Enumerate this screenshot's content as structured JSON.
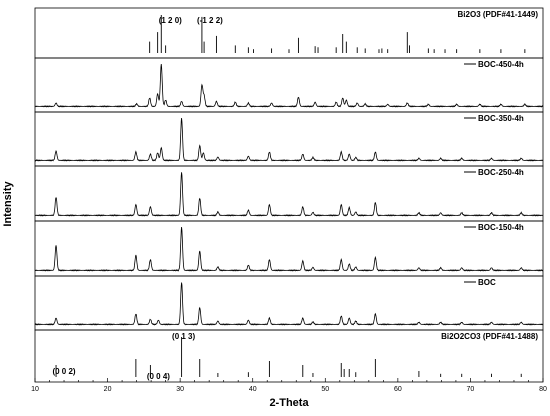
{
  "chart_data": {
    "type": "line",
    "xlabel": "2-Theta",
    "ylabel": "Intensity",
    "xlim": [
      10,
      80
    ],
    "x_ticks": [
      10,
      20,
      30,
      40,
      50,
      60,
      70,
      80
    ],
    "panel_order_top_to_bottom": [
      "Bi2O3 (PDF#41-1449)",
      "BOC-450-4h",
      "BOC-350-4h",
      "BOC-250-4h",
      "BOC-150-4h",
      "BOC",
      "Bi2O2CO3 (PDF#41-1488)"
    ],
    "series": [
      {
        "name": "Bi2O3 (PDF#41-1449)",
        "label_text": "Bi2O3 (PDF#41-1449)",
        "kind": "reference_sticks",
        "peaks": [
          [
            25.8,
            0.3
          ],
          [
            26.9,
            0.55
          ],
          [
            27.4,
            1.0
          ],
          [
            28.0,
            0.2
          ],
          [
            33.0,
            0.95
          ],
          [
            33.3,
            0.3
          ],
          [
            35.0,
            0.45
          ],
          [
            37.6,
            0.2
          ],
          [
            39.4,
            0.15
          ],
          [
            40.1,
            0.1
          ],
          [
            42.6,
            0.12
          ],
          [
            45.0,
            0.1
          ],
          [
            46.3,
            0.4
          ],
          [
            48.6,
            0.18
          ],
          [
            49.0,
            0.15
          ],
          [
            51.5,
            0.15
          ],
          [
            52.4,
            0.5
          ],
          [
            52.9,
            0.3
          ],
          [
            54.4,
            0.15
          ],
          [
            55.5,
            0.12
          ],
          [
            57.4,
            0.1
          ],
          [
            57.8,
            0.12
          ],
          [
            58.6,
            0.1
          ],
          [
            61.3,
            0.55
          ],
          [
            61.6,
            0.2
          ],
          [
            64.2,
            0.12
          ],
          [
            65.0,
            0.1
          ],
          [
            66.5,
            0.1
          ],
          [
            68.1,
            0.1
          ],
          [
            71.3,
            0.1
          ],
          [
            74.2,
            0.1
          ],
          [
            77.5,
            0.1
          ]
        ]
      },
      {
        "name": "BOC-450-4h",
        "label_text": "BOC-450-4h",
        "kind": "pattern",
        "peaks": [
          [
            12.9,
            0.08
          ],
          [
            24.0,
            0.06
          ],
          [
            25.8,
            0.2
          ],
          [
            26.9,
            0.3
          ],
          [
            27.4,
            1.0
          ],
          [
            28.0,
            0.15
          ],
          [
            30.2,
            0.12
          ],
          [
            33.0,
            0.5
          ],
          [
            33.3,
            0.25
          ],
          [
            35.0,
            0.12
          ],
          [
            37.6,
            0.1
          ],
          [
            39.4,
            0.08
          ],
          [
            42.6,
            0.08
          ],
          [
            46.3,
            0.22
          ],
          [
            48.6,
            0.1
          ],
          [
            51.5,
            0.1
          ],
          [
            52.4,
            0.2
          ],
          [
            52.9,
            0.15
          ],
          [
            54.4,
            0.08
          ],
          [
            55.5,
            0.06
          ],
          [
            58.6,
            0.05
          ],
          [
            61.3,
            0.08
          ],
          [
            64.2,
            0.05
          ],
          [
            68.1,
            0.05
          ],
          [
            71.3,
            0.05
          ],
          [
            74.2,
            0.05
          ],
          [
            77.5,
            0.05
          ]
        ]
      },
      {
        "name": "BOC-350-4h",
        "label_text": "BOC-350-4h",
        "kind": "pattern",
        "peaks": [
          [
            12.9,
            0.22
          ],
          [
            23.9,
            0.2
          ],
          [
            25.9,
            0.15
          ],
          [
            26.9,
            0.18
          ],
          [
            27.4,
            0.3
          ],
          [
            30.2,
            1.0
          ],
          [
            32.7,
            0.35
          ],
          [
            33.2,
            0.18
          ],
          [
            35.2,
            0.08
          ],
          [
            39.4,
            0.1
          ],
          [
            42.3,
            0.2
          ],
          [
            46.9,
            0.15
          ],
          [
            48.3,
            0.07
          ],
          [
            52.2,
            0.2
          ],
          [
            53.3,
            0.15
          ],
          [
            54.2,
            0.07
          ],
          [
            56.9,
            0.2
          ],
          [
            62.9,
            0.05
          ],
          [
            65.9,
            0.05
          ],
          [
            68.8,
            0.05
          ],
          [
            72.9,
            0.05
          ],
          [
            77.0,
            0.05
          ]
        ]
      },
      {
        "name": "BOC-250-4h",
        "label_text": "BOC-250-4h",
        "kind": "pattern",
        "peaks": [
          [
            12.9,
            0.42
          ],
          [
            23.9,
            0.25
          ],
          [
            25.9,
            0.2
          ],
          [
            30.2,
            1.0
          ],
          [
            32.7,
            0.4
          ],
          [
            35.2,
            0.08
          ],
          [
            39.4,
            0.12
          ],
          [
            42.3,
            0.25
          ],
          [
            46.9,
            0.2
          ],
          [
            48.3,
            0.07
          ],
          [
            52.2,
            0.25
          ],
          [
            53.3,
            0.18
          ],
          [
            54.2,
            0.08
          ],
          [
            56.9,
            0.3
          ],
          [
            62.9,
            0.06
          ],
          [
            65.9,
            0.06
          ],
          [
            68.8,
            0.06
          ],
          [
            72.9,
            0.06
          ],
          [
            77.0,
            0.06
          ]
        ]
      },
      {
        "name": "BOC-150-4h",
        "label_text": "BOC-150-4h",
        "kind": "pattern",
        "peaks": [
          [
            12.9,
            0.58
          ],
          [
            23.9,
            0.35
          ],
          [
            25.9,
            0.25
          ],
          [
            30.2,
            1.0
          ],
          [
            32.7,
            0.45
          ],
          [
            35.2,
            0.08
          ],
          [
            39.4,
            0.12
          ],
          [
            42.3,
            0.25
          ],
          [
            46.9,
            0.22
          ],
          [
            48.3,
            0.07
          ],
          [
            52.2,
            0.25
          ],
          [
            53.3,
            0.15
          ],
          [
            54.2,
            0.08
          ],
          [
            56.9,
            0.3
          ],
          [
            62.9,
            0.06
          ],
          [
            65.9,
            0.06
          ],
          [
            68.8,
            0.06
          ],
          [
            72.9,
            0.06
          ],
          [
            77.0,
            0.06
          ]
        ]
      },
      {
        "name": "BOC",
        "label_text": "BOC",
        "kind": "pattern",
        "peaks": [
          [
            12.9,
            0.15
          ],
          [
            23.9,
            0.25
          ],
          [
            25.9,
            0.12
          ],
          [
            27.0,
            0.1
          ],
          [
            30.2,
            1.0
          ],
          [
            32.7,
            0.4
          ],
          [
            35.2,
            0.08
          ],
          [
            39.4,
            0.1
          ],
          [
            42.3,
            0.15
          ],
          [
            46.9,
            0.15
          ],
          [
            48.3,
            0.06
          ],
          [
            52.2,
            0.2
          ],
          [
            53.3,
            0.15
          ],
          [
            54.2,
            0.08
          ],
          [
            56.9,
            0.25
          ],
          [
            62.9,
            0.05
          ],
          [
            65.9,
            0.05
          ],
          [
            68.8,
            0.05
          ],
          [
            72.9,
            0.05
          ],
          [
            77.0,
            0.05
          ]
        ]
      },
      {
        "name": "Bi2O2CO3 (PDF#41-1488)",
        "label_text": "Bi2O2CO3 (PDF#41-1488)",
        "kind": "reference_sticks",
        "peaks": [
          [
            12.9,
            0.3
          ],
          [
            23.9,
            0.45
          ],
          [
            25.9,
            0.3
          ],
          [
            30.2,
            1.0
          ],
          [
            32.7,
            0.45
          ],
          [
            35.2,
            0.1
          ],
          [
            39.4,
            0.12
          ],
          [
            42.3,
            0.4
          ],
          [
            46.9,
            0.3
          ],
          [
            48.3,
            0.1
          ],
          [
            52.2,
            0.35
          ],
          [
            52.6,
            0.2
          ],
          [
            53.3,
            0.2
          ],
          [
            54.2,
            0.12
          ],
          [
            56.9,
            0.45
          ],
          [
            62.9,
            0.15
          ],
          [
            65.9,
            0.08
          ],
          [
            68.8,
            0.08
          ],
          [
            72.9,
            0.08
          ],
          [
            77.0,
            0.08
          ]
        ]
      }
    ],
    "annotations": [
      {
        "text": "(1 2 0)",
        "x": 27.4,
        "panel": "Bi2O3 (PDF#41-1449)"
      },
      {
        "text": "(-1 2 2)",
        "x": 33.0,
        "panel": "Bi2O3 (PDF#41-1449)"
      },
      {
        "text": "(0 1 3)",
        "x": 30.2,
        "panel": "Bi2O2CO3 (PDF#41-1488)"
      },
      {
        "text": "(0 0 2)",
        "x": 12.9,
        "panel": "Bi2O2CO3 (PDF#41-1488)"
      },
      {
        "text": "(0 0 4)",
        "x": 25.9,
        "panel": "Bi2O2CO3 (PDF#41-1488)"
      }
    ],
    "grid": false
  }
}
